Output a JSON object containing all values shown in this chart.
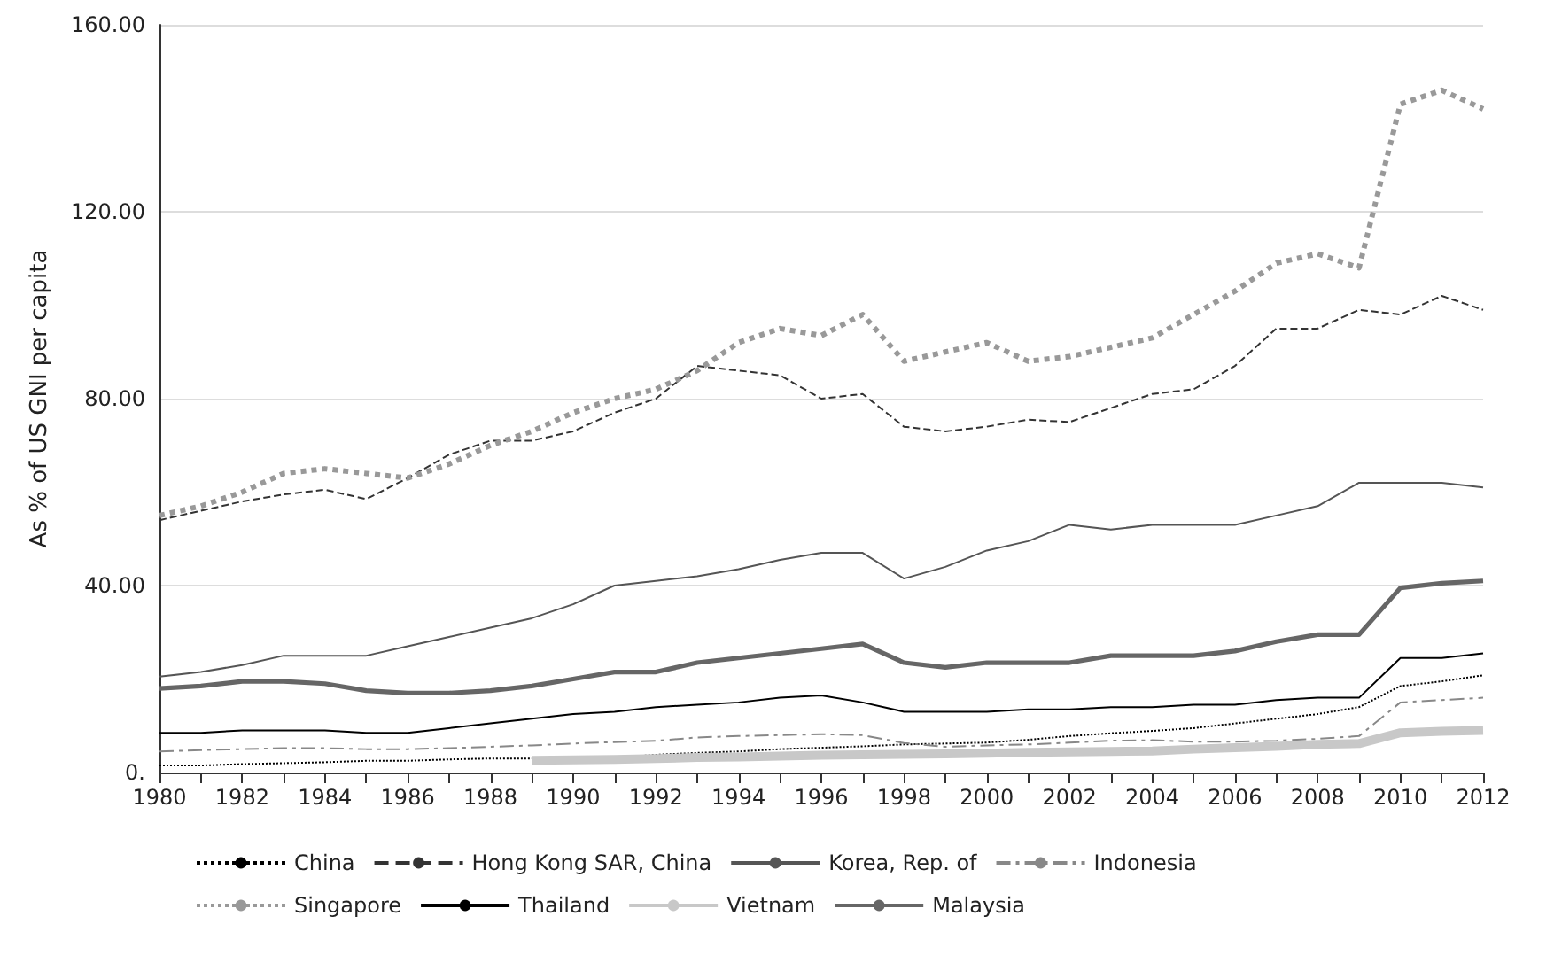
{
  "chart_data": {
    "type": "line",
    "ylabel": "As % of US GNI per capita",
    "categories": [
      "1980",
      null,
      "1982",
      null,
      "1984",
      null,
      "1986",
      null,
      "1988",
      null,
      "1990",
      null,
      "1992",
      null,
      "1994",
      null,
      "1996",
      null,
      "1998",
      null,
      "2000",
      null,
      "2002",
      null,
      "2004",
      null,
      "2006",
      null,
      "2008",
      null,
      "2010",
      null,
      "2012"
    ],
    "ylim": [
      0,
      160
    ],
    "yticks": [
      {
        "value": 0,
        "label": "0."
      },
      {
        "value": 40,
        "label": "40.00"
      },
      {
        "value": 80,
        "label": "80.00"
      },
      {
        "value": 120,
        "label": "120.00"
      },
      {
        "value": 160,
        "label": "160.00"
      }
    ],
    "grid": "y",
    "legend": "bottom",
    "marker": "none",
    "series": [
      {
        "name": "China",
        "color": "#000000",
        "line_style": "dotted",
        "values": [
          1.5,
          1.5,
          1.8,
          2,
          2.2,
          2.5,
          2.5,
          2.8,
          3,
          3,
          3,
          3.2,
          3.8,
          4.2,
          4.5,
          5,
          5.3,
          5.6,
          6,
          6.2,
          6.4,
          7,
          7.8,
          8.4,
          8.9,
          9.5,
          10.5,
          11.5,
          12.5,
          14,
          18.5,
          19.5,
          20.8
        ]
      },
      {
        "name": "Hong Kong SAR, China",
        "color": "#333333",
        "line_style": "dashed",
        "values": [
          54,
          56,
          58,
          59.5,
          60.5,
          58.5,
          63,
          68,
          71,
          71,
          73,
          77,
          80,
          87,
          86,
          85,
          80,
          81,
          74,
          73,
          74,
          75.5,
          75,
          78,
          81,
          82,
          87,
          95,
          95,
          99,
          98,
          102,
          99
        ]
      },
      {
        "name": "Korea, Rep. of",
        "color": "#555555",
        "line_style": "solid",
        "values": [
          20.5,
          21.5,
          23,
          25,
          25,
          25,
          27,
          29,
          31,
          33,
          36,
          40,
          41,
          42,
          43.5,
          45.5,
          47,
          47,
          41.5,
          44,
          47.5,
          49.5,
          53,
          52,
          53,
          53,
          53,
          55,
          57,
          62,
          62,
          62,
          61
        ]
      },
      {
        "name": "Indonesia",
        "color": "#888888",
        "line_style": "dashed",
        "values": [
          4.5,
          4.8,
          5,
          5.2,
          5.2,
          5,
          5,
          5.2,
          5.5,
          5.8,
          6.2,
          6.5,
          6.8,
          7.5,
          7.8,
          8,
          8.2,
          8,
          6.3,
          5.5,
          5.8,
          6,
          6.4,
          6.8,
          6.9,
          6.6,
          6.6,
          6.8,
          7.2,
          7.8,
          15,
          15.5,
          16
        ]
      },
      {
        "name": "Singapore",
        "color": "#999999",
        "line_style": "dotted",
        "values": [
          55,
          57,
          60,
          64,
          65,
          64,
          63,
          66,
          70,
          73,
          77,
          80,
          82,
          86,
          92,
          95,
          93.5,
          98,
          88,
          90,
          92,
          88,
          89,
          91,
          93,
          98,
          103,
          109,
          111,
          108,
          143,
          146,
          142
        ]
      },
      {
        "name": "Thailand",
        "color": "#000000",
        "line_style": "solid",
        "values": [
          8.5,
          8.5,
          9,
          9,
          9,
          8.5,
          8.5,
          9.5,
          10.5,
          11.5,
          12.5,
          13,
          14,
          14.5,
          15,
          16,
          16.5,
          15,
          13,
          13,
          13,
          13.5,
          13.5,
          14,
          14,
          14.5,
          14.5,
          15.5,
          16,
          16,
          24.5,
          24.5,
          25.5
        ]
      },
      {
        "name": "Vietnam",
        "color": "#c8c8c8",
        "line_style": "solid",
        "values": [
          null,
          null,
          null,
          null,
          null,
          null,
          null,
          null,
          null,
          2.6,
          2.7,
          2.8,
          3,
          3.2,
          3.3,
          3.5,
          3.7,
          3.8,
          3.9,
          4,
          4.1,
          4.3,
          4.4,
          4.5,
          4.6,
          5,
          5.3,
          5.6,
          6,
          6.2,
          8.5,
          8.8,
          9
        ]
      },
      {
        "name": "Malaysia",
        "color": "#666666",
        "line_style": "solid",
        "values": [
          18,
          18.5,
          19.5,
          19.5,
          19,
          17.5,
          17,
          17,
          17.5,
          18.5,
          20,
          21.5,
          21.5,
          23.5,
          24.5,
          25.5,
          26.5,
          27.5,
          23.5,
          22.5,
          23.5,
          23.5,
          23.5,
          25,
          25,
          25,
          26,
          28,
          29.5,
          29.5,
          39.5,
          40.5,
          41
        ]
      }
    ]
  }
}
